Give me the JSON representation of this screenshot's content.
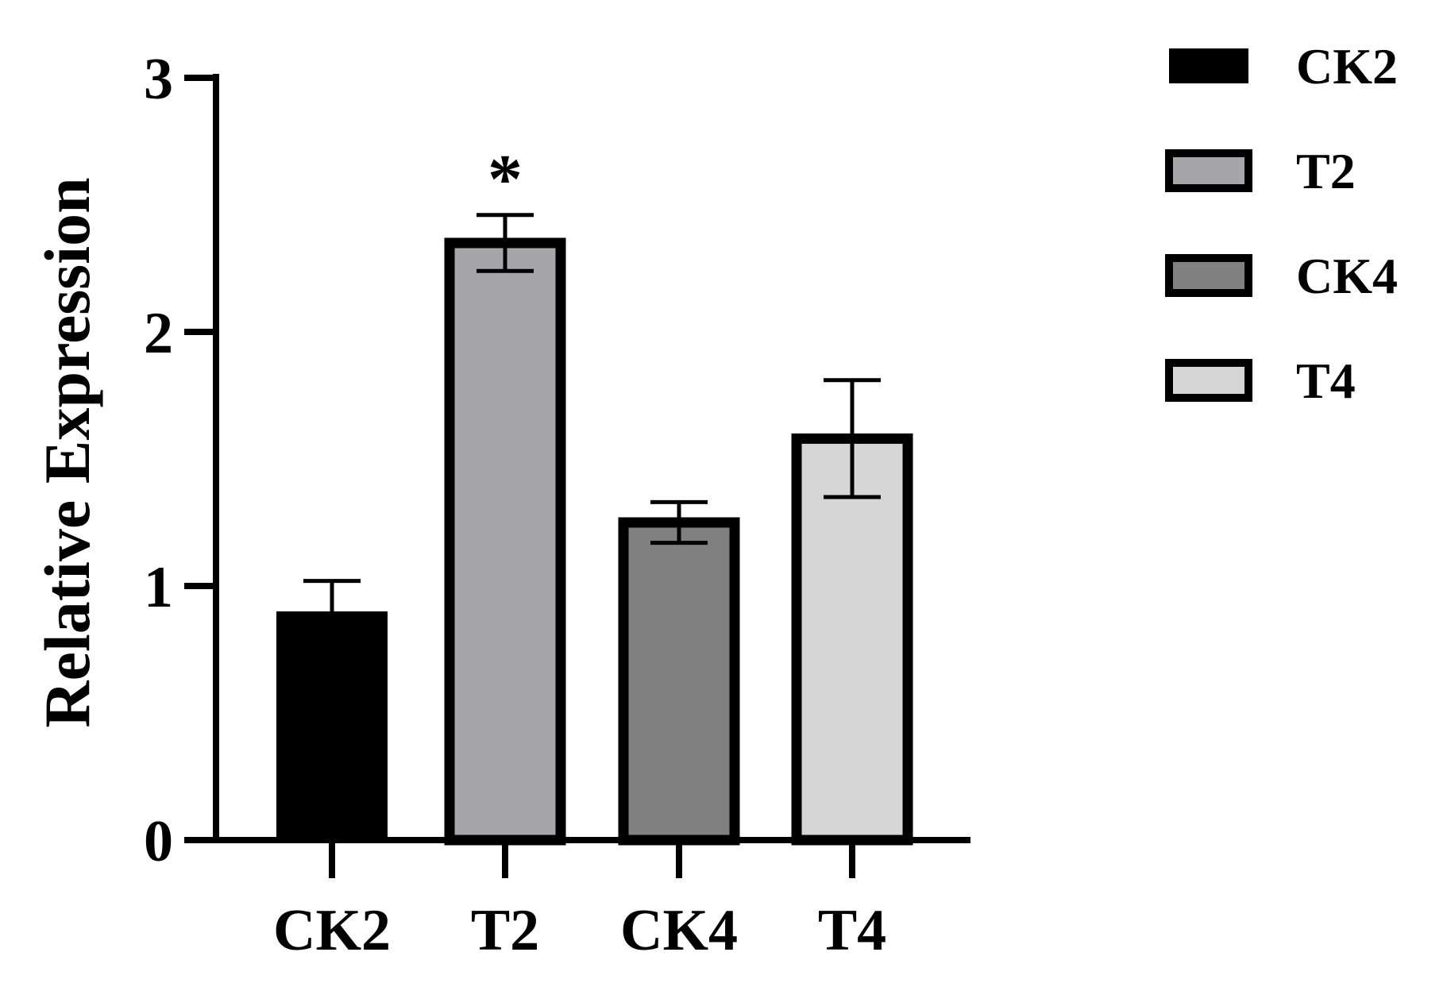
{
  "chart_data": {
    "type": "bar",
    "title": "",
    "xlabel": "",
    "ylabel": "Relative Expression",
    "ylim": [
      0,
      3
    ],
    "yticks": [
      "0",
      "1",
      "2",
      "3"
    ],
    "categories": [
      "CK2",
      "T2",
      "CK4",
      "T4"
    ],
    "values": [
      0.9,
      2.35,
      1.25,
      1.58
    ],
    "errors": [
      0.12,
      0.11,
      0.08,
      0.23
    ],
    "colors": [
      "#000000",
      "#a6a5aa",
      "#808080",
      "#d6d6d6"
    ],
    "significance": [
      "",
      "*",
      "",
      ""
    ],
    "legend": {
      "placement": "top-right",
      "entries": [
        "CK2",
        "T2",
        "CK4",
        "T4"
      ]
    },
    "grid": false
  }
}
